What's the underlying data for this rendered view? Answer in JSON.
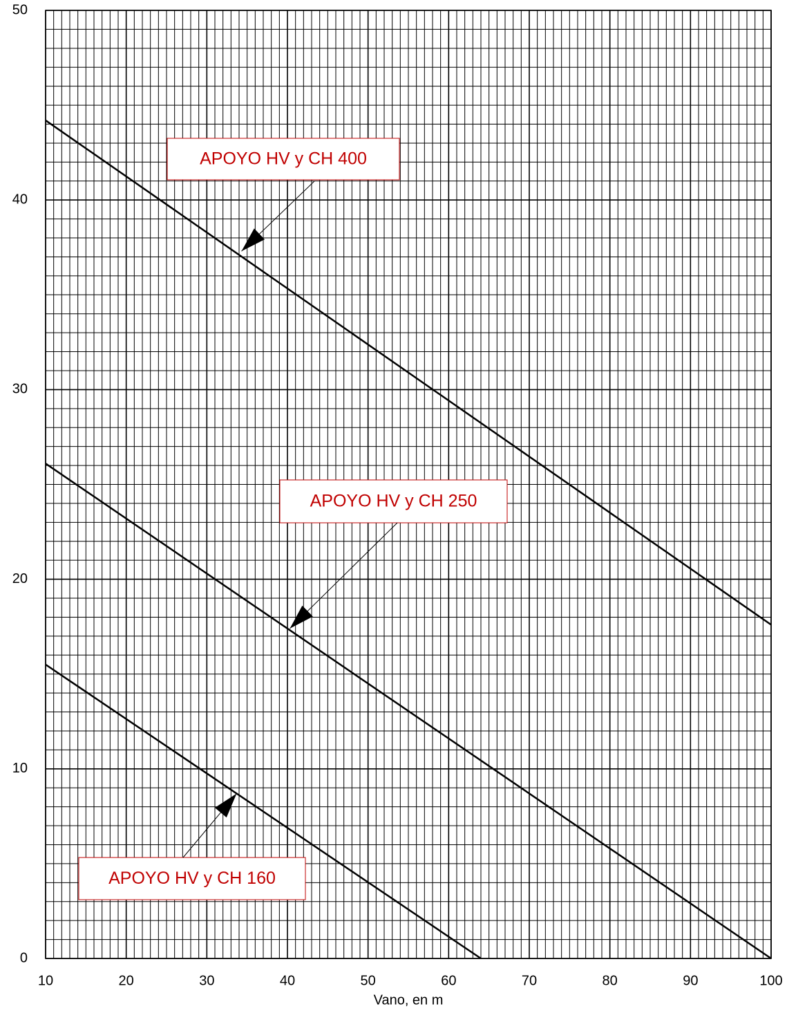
{
  "chart_data": {
    "type": "line",
    "x_label": "Vano, en m",
    "xlim": [
      10,
      100
    ],
    "xticks": [
      10,
      20,
      30,
      40,
      50,
      60,
      70,
      80,
      90,
      100
    ],
    "ylim": [
      0,
      50
    ],
    "yticks": [
      0,
      10,
      20,
      30,
      40,
      50
    ],
    "grid": true,
    "series": [
      {
        "color": "#000000",
        "x": [
          10,
          100
        ],
        "values": [
          44.2,
          17.6
        ]
      },
      {
        "color": "#000000",
        "x": [
          10,
          100
        ],
        "values": [
          26.1,
          0
        ]
      },
      {
        "color": "#000000",
        "x": [
          10,
          64
        ],
        "values": [
          15.5,
          0
        ]
      }
    ],
    "annotations": [
      {
        "text": "APOYO HV y CH 400",
        "x": 34.3,
        "y": 37.3
      },
      {
        "text": "APOYO HV y CH 250",
        "x": 40.3,
        "y": 17.4
      },
      {
        "text": "APOYO HV y CH 160",
        "x": 33.7,
        "y": 8.7
      }
    ]
  }
}
